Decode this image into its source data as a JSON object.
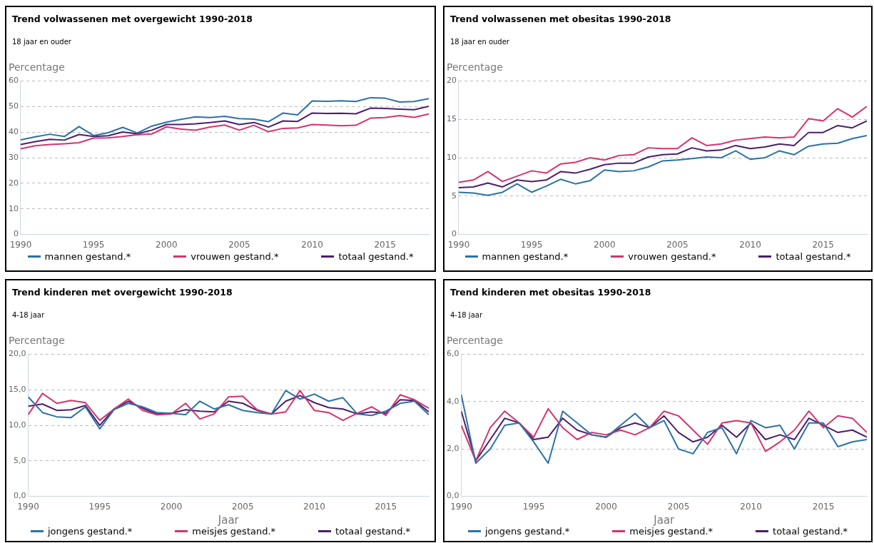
{
  "chart_data": [
    {
      "type": "line",
      "title": "Trend volwassenen met overgewicht 1990-2018",
      "subtitle": "18 jaar en ouder",
      "ylabel": "Percentage",
      "x": [
        1990,
        1991,
        1992,
        1993,
        1994,
        1995,
        1996,
        1997,
        1998,
        1999,
        2000,
        2001,
        2002,
        2003,
        2004,
        2005,
        2006,
        2007,
        2008,
        2009,
        2010,
        2011,
        2012,
        2013,
        2014,
        2015,
        2016,
        2017,
        2018
      ],
      "xlim": [
        1990,
        2018
      ],
      "xticks": [
        1990,
        1995,
        2000,
        2005,
        2010,
        2015
      ],
      "ylim": [
        0,
        60
      ],
      "yticks": [
        0,
        10,
        20,
        30,
        40,
        50,
        60
      ],
      "grid": "y",
      "legend": "bottom",
      "marker": "none",
      "series": [
        {
          "name": "mannen gestand.*",
          "color": "#2b72a6",
          "values": [
            37,
            38.2,
            39.2,
            38.3,
            42.2,
            38.7,
            39.8,
            41.9,
            39.7,
            42.4,
            43.9,
            45,
            46,
            45.7,
            46.2,
            45.3,
            45.1,
            44.1,
            47.5,
            46.8,
            52.2,
            52.1,
            52.3,
            52,
            53.5,
            53.3,
            51.8,
            52,
            53.1
          ]
        },
        {
          "name": "vrouwen gestand.*",
          "color": "#d6336c",
          "values": [
            33.5,
            34.7,
            35.2,
            35.5,
            35.9,
            37.7,
            37.8,
            38.3,
            39,
            39.3,
            42.1,
            41.2,
            40.8,
            42,
            42.8,
            40.8,
            42.7,
            40.2,
            41.5,
            41.7,
            43,
            42.8,
            42.5,
            42.7,
            45.5,
            45.7,
            46.5,
            45.8,
            47.1
          ]
        },
        {
          "name": "totaal gestand.*",
          "color": "#4b1f6b",
          "values": [
            35.2,
            36.3,
            37.2,
            36.9,
            39.1,
            38.3,
            38.6,
            40.1,
            39.4,
            40.8,
            43,
            43,
            43.3,
            43.8,
            44.4,
            43,
            43.8,
            42,
            44.4,
            44.2,
            47.5,
            47.3,
            47.4,
            47.2,
            49.4,
            49.3,
            49,
            48.8,
            50.1
          ]
        }
      ]
    },
    {
      "type": "line",
      "title": "Trend volwassenen met obesitas 1990-2018",
      "subtitle": "18 jaar en ouder",
      "ylabel": "Percentage",
      "x": [
        1990,
        1991,
        1992,
        1993,
        1994,
        1995,
        1996,
        1997,
        1998,
        1999,
        2000,
        2001,
        2002,
        2003,
        2004,
        2005,
        2006,
        2007,
        2008,
        2009,
        2010,
        2011,
        2012,
        2013,
        2014,
        2015,
        2016,
        2017,
        2018
      ],
      "xlim": [
        1990,
        2018
      ],
      "xticks": [
        1990,
        1995,
        2000,
        2005,
        2010,
        2015
      ],
      "ylim": [
        0,
        20
      ],
      "yticks": [
        0,
        5,
        10,
        15,
        20
      ],
      "grid": "y",
      "legend": "bottom",
      "marker": "none",
      "series": [
        {
          "name": "mannen gestand.*",
          "color": "#2b72a6",
          "values": [
            5.5,
            5.4,
            5.1,
            5.5,
            6.6,
            5.5,
            6.3,
            7.2,
            6.6,
            7,
            8.4,
            8.2,
            8.3,
            8.8,
            9.6,
            9.7,
            9.9,
            10.1,
            10,
            10.9,
            9.8,
            10,
            10.9,
            10.4,
            11.5,
            11.8,
            11.9,
            12.5,
            12.9
          ]
        },
        {
          "name": "vrouwen gestand.*",
          "color": "#d6336c",
          "values": [
            6.8,
            7.1,
            8.2,
            6.9,
            7.6,
            8.3,
            8,
            9.2,
            9.4,
            10,
            9.7,
            10.3,
            10.4,
            11.3,
            11.2,
            11.2,
            12.6,
            11.6,
            11.8,
            12.3,
            12.5,
            12.7,
            12.6,
            12.7,
            15.1,
            14.8,
            16.4,
            15.3,
            16.7
          ]
        },
        {
          "name": "totaal gestand.*",
          "color": "#4b1f6b",
          "values": [
            6.1,
            6.2,
            6.7,
            6.2,
            7.1,
            6.9,
            7.1,
            8.2,
            8,
            8.5,
            9.1,
            9.3,
            9.3,
            10.1,
            10.4,
            10.5,
            11.3,
            10.9,
            11,
            11.6,
            11.2,
            11.4,
            11.8,
            11.6,
            13.3,
            13.3,
            14.2,
            13.9,
            14.8
          ]
        }
      ]
    },
    {
      "type": "line",
      "title": "Trend kinderen met overgewicht 1990-2018",
      "subtitle": "4-18 jaar",
      "ylabel": "Percentage",
      "xlabel": "Jaar",
      "x": [
        1990,
        1991,
        1992,
        1993,
        1994,
        1995,
        1996,
        1997,
        1998,
        1999,
        2000,
        2001,
        2002,
        2003,
        2004,
        2005,
        2006,
        2007,
        2008,
        2009,
        2010,
        2011,
        2012,
        2013,
        2014,
        2015,
        2016,
        2017,
        2018
      ],
      "xlim": [
        1990,
        2018
      ],
      "xticks": [
        1990,
        1995,
        2000,
        2005,
        2010,
        2015
      ],
      "ylim": [
        0,
        20
      ],
      "yticks": [
        {
          "value": 0,
          "label": "0,0"
        },
        {
          "value": 5,
          "label": "5,0"
        },
        {
          "value": 10,
          "label": "10,0"
        },
        {
          "value": 15,
          "label": "15,0"
        },
        {
          "value": 20,
          "label": "20,0"
        }
      ],
      "grid": "y",
      "legend": "bottom",
      "marker": "none",
      "series": [
        {
          "name": "jongens gestand.*",
          "color": "#2b72a6",
          "values": [
            14,
            11.8,
            11.2,
            11.1,
            12.6,
            9.5,
            12.2,
            13.1,
            12.6,
            11.8,
            11.7,
            11.5,
            13.4,
            12.3,
            12.9,
            12.1,
            11.8,
            11.6,
            14.9,
            13.7,
            14.4,
            13.4,
            13.9,
            11.6,
            11.4,
            12,
            13.1,
            13.4,
            11.5
          ]
        },
        {
          "name": "meisjes gestand.*",
          "color": "#d6336c",
          "values": [
            11.5,
            14.5,
            13.1,
            13.5,
            13.2,
            10.7,
            12.3,
            13.7,
            12.1,
            11.5,
            11.6,
            13.1,
            10.9,
            11.6,
            14,
            14.1,
            12.2,
            11.6,
            11.9,
            14.9,
            12.1,
            11.8,
            10.7,
            11.7,
            12.6,
            11.4,
            14.3,
            13.6,
            12.4
          ]
        },
        {
          "name": "totaal gestand.*",
          "color": "#4b1f6b",
          "values": [
            12.7,
            13,
            12.1,
            12.2,
            12.8,
            10,
            12.3,
            13.4,
            12.4,
            11.6,
            11.7,
            12.2,
            12,
            11.9,
            13.4,
            13.1,
            12.1,
            11.6,
            13.4,
            14.2,
            13.2,
            12.5,
            12.3,
            11.6,
            11.9,
            11.7,
            13.6,
            13.5,
            11.9
          ]
        }
      ]
    },
    {
      "type": "line",
      "title": "Trend kinderen met obesitas 1990-2018",
      "subtitle": "4-18 jaar",
      "ylabel": "Percentage",
      "xlabel": "Jaar",
      "x": [
        1990,
        1991,
        1992,
        1993,
        1994,
        1995,
        1996,
        1997,
        1998,
        1999,
        2000,
        2001,
        2002,
        2003,
        2004,
        2005,
        2006,
        2007,
        2008,
        2009,
        2010,
        2011,
        2012,
        2013,
        2014,
        2015,
        2016,
        2017,
        2018
      ],
      "xlim": [
        1990,
        2018
      ],
      "xticks": [
        1990,
        1995,
        2000,
        2005,
        2010,
        2015
      ],
      "ylim": [
        0,
        6
      ],
      "yticks": [
        {
          "value": 0,
          "label": "0,0"
        },
        {
          "value": 2,
          "label": "2,0"
        },
        {
          "value": 4,
          "label": "4,0"
        },
        {
          "value": 6,
          "label": "6,0"
        }
      ],
      "grid": "y",
      "legend": "bottom",
      "marker": "none",
      "series": [
        {
          "name": "jongens gestand.*",
          "color": "#2b72a6",
          "values": [
            4.3,
            1.4,
            2,
            3,
            3.1,
            2.3,
            1.4,
            3.6,
            3.1,
            2.6,
            2.5,
            3,
            3.5,
            2.9,
            3.2,
            2,
            1.8,
            2.7,
            2.9,
            1.8,
            3.2,
            2.9,
            3,
            2,
            3.1,
            3.1,
            2.1,
            2.3,
            2.4
          ]
        },
        {
          "name": "meisjes gestand.*",
          "color": "#d6336c",
          "values": [
            3,
            1.5,
            2.9,
            3.6,
            3.1,
            2.5,
            3.7,
            2.9,
            2.4,
            2.7,
            2.6,
            2.8,
            2.6,
            2.9,
            3.6,
            3.4,
            2.8,
            2.2,
            3.1,
            3.2,
            3.1,
            1.9,
            2.3,
            2.8,
            3.6,
            2.9,
            3.4,
            3.3,
            2.7
          ]
        },
        {
          "name": "totaal gestand.*",
          "color": "#4b1f6b",
          "values": [
            3.6,
            1.5,
            2.4,
            3.3,
            3.1,
            2.4,
            2.5,
            3.3,
            2.8,
            2.6,
            2.5,
            2.9,
            3.1,
            2.9,
            3.4,
            2.7,
            2.3,
            2.5,
            3,
            2.5,
            3.1,
            2.4,
            2.6,
            2.4,
            3.3,
            3,
            2.7,
            2.8,
            2.5
          ]
        }
      ]
    }
  ]
}
